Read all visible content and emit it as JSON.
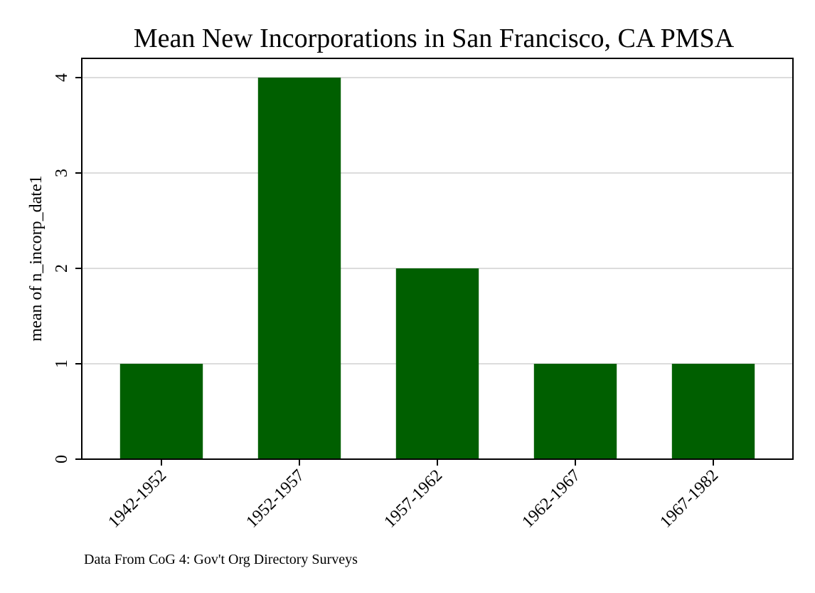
{
  "chart_data": {
    "type": "bar",
    "title": "Mean New Incorporations in San Francisco, CA PMSA",
    "ylabel": "mean of n_incorp_date1",
    "xlabel": "",
    "categories": [
      "1942-1952",
      "1952-1957",
      "1957-1962",
      "1962-1967",
      "1967-1982"
    ],
    "values": [
      1,
      4,
      2,
      1,
      1
    ],
    "ylim": [
      0,
      4
    ],
    "yticks": [
      0,
      1,
      2,
      3,
      4
    ],
    "grid": true,
    "bar_color": "#005f00",
    "grid_color": "#dcdcdc",
    "note": "Data From CoG 4: Gov't Org Directory Surveys"
  }
}
